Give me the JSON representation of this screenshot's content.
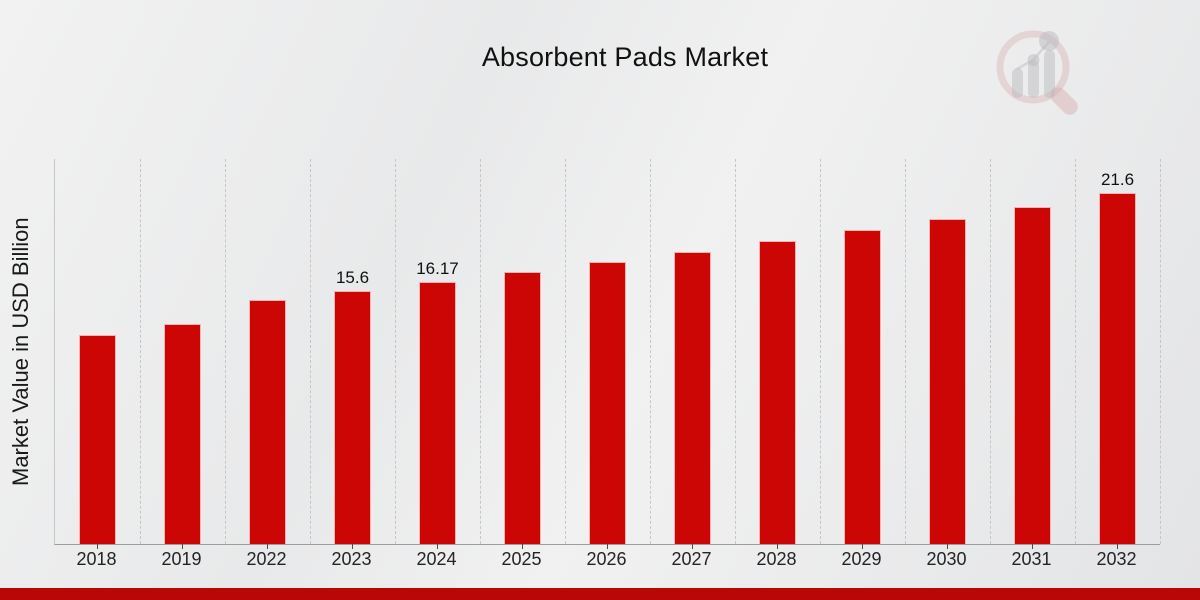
{
  "title": "Absorbent Pads Market",
  "ylabel": "Market Value in USD Billion",
  "watermark_name": "market-research-future-logo",
  "colors": {
    "bar": "#cc0505",
    "bar_edge": "rgba(255,255,255,0.7)",
    "bottom_strip": "#b90707",
    "gridline": "#c6c6c6",
    "axis_line": "#9d9d9d",
    "text": "#111111"
  },
  "chart_data": {
    "type": "bar",
    "title": "Absorbent Pads Market",
    "xlabel": "",
    "ylabel": "Market Value in USD Billion",
    "categories": [
      "2018",
      "2019",
      "2022",
      "2023",
      "2024",
      "2025",
      "2026",
      "2027",
      "2028",
      "2029",
      "2030",
      "2031",
      "2032"
    ],
    "values": [
      12.85,
      13.55,
      15.05,
      15.6,
      16.17,
      16.76,
      17.37,
      18.0,
      18.66,
      19.34,
      20.04,
      20.77,
      21.6
    ],
    "data_labels": {
      "2023": "15.6",
      "2024": "16.17",
      "2032": "21.6"
    },
    "unit": "USD Billion",
    "ylim": [
      0,
      23.72
    ],
    "grid": "vertical category separators, dashed light gray",
    "legend": "none",
    "bar_color": "#cc0505"
  }
}
